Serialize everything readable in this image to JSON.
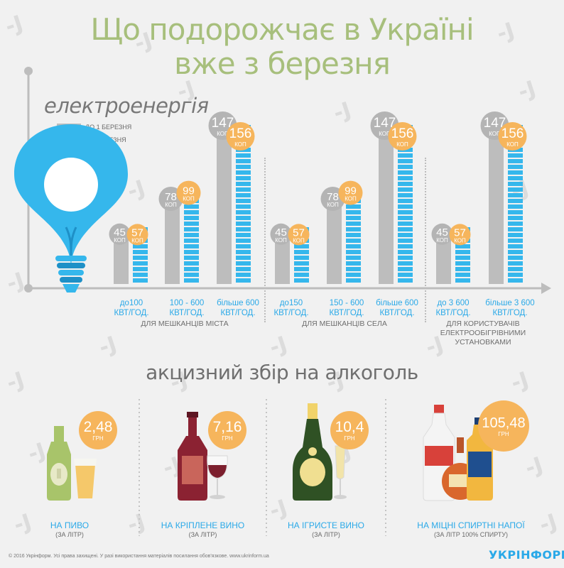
{
  "title_line1": "Що подорожчає в Україні",
  "title_line2": "вже з березня",
  "electricity": {
    "heading": "електроенергія",
    "legend": {
      "before": "ДО 1 БЕРЕЗНЯ",
      "after": "З 1 БЕРЕЗНЯ"
    },
    "unit": "КОП",
    "colors": {
      "before": "#bdbdbd",
      "after": "#35b7ec",
      "bubble_before": "#b4b4b4",
      "bubble_after": "#f6b55c"
    },
    "groups": [
      {
        "caption": "ДЛЯ МЕШКАНЦІВ МІСТА",
        "pairs": [
          {
            "label1": "до100",
            "label2": "КВТ/ГОД.",
            "before": 45,
            "after": 57
          },
          {
            "label1": "100 - 600",
            "label2": "КВТ/ГОД.",
            "before": 78,
            "after": 99
          },
          {
            "label1": "більше 600",
            "label2": "КВТ/ГОД.",
            "before": 147,
            "after": 156
          }
        ]
      },
      {
        "caption": "ДЛЯ МЕШКАНЦІВ СЕЛА",
        "pairs": [
          {
            "label1": "до150",
            "label2": "КВТ/ГОД.",
            "before": 45,
            "after": 57
          },
          {
            "label1": "150 - 600",
            "label2": "КВТ/ГОД.",
            "before": 78,
            "after": 99
          },
          {
            "label1": "більше 600",
            "label2": "КВТ/ГОД.",
            "before": 147,
            "after": 156
          }
        ]
      },
      {
        "caption1": "ДЛЯ КОРИСТУВАЧІВ",
        "caption2": "ЕЛЕКТРООБІГРІВНИМИ",
        "caption3": "УСТАНОВКАМИ",
        "pairs": [
          {
            "label1": "до 3 600",
            "label2": "КВТ/ГОД.",
            "before": 45,
            "after": 57
          },
          {
            "label1": "більше 3 600",
            "label2": "КВТ/ГОД.",
            "before": 147,
            "after": 156
          }
        ]
      }
    ]
  },
  "chart_data": {
    "type": "bar",
    "title": "електроенергія",
    "unit": "коп",
    "categories": [
      "до100 КВТ/ГОД. (місто)",
      "100 - 600 КВТ/ГОД. (місто)",
      "більше 600 КВТ/ГОД. (місто)",
      "до150 КВТ/ГОД. (село)",
      "150 - 600 КВТ/ГОД. (село)",
      "більше 600 КВТ/ГОД. (село)",
      "до 3 600 КВТ/ГОД.",
      "більше 3 600 КВТ/ГОД."
    ],
    "series": [
      {
        "name": "ДО 1 БЕРЕЗНЯ",
        "values": [
          45,
          78,
          147,
          45,
          78,
          147,
          45,
          147
        ]
      },
      {
        "name": "З 1 БЕРЕЗНЯ",
        "values": [
          57,
          99,
          156,
          57,
          99,
          156,
          57,
          156
        ]
      }
    ],
    "legend": "top-left",
    "grid": false
  },
  "alcohol": {
    "heading": "акцизний збір на алкоголь",
    "currency": "ГРН",
    "items": [
      {
        "value": "2,48",
        "label": "НА ПИВО",
        "sub": "(ЗА ЛІТР)"
      },
      {
        "value": "7,16",
        "label": "НА КРІПЛЕНЕ ВИНО",
        "sub": "(ЗА ЛІТР)"
      },
      {
        "value": "10,4",
        "label": "НА  ІГРИСТЕ ВИНО",
        "sub": "(ЗА ЛІТР)"
      },
      {
        "value": "105,48",
        "label": "НА МІЦНІ СПИРТНІ НАПОЇ",
        "sub": "(ЗА ЛІТР 100% СПИРТУ)"
      }
    ]
  },
  "footer": "© 2016 Укрінформ. Усі права захищені. У разі використання матеріалів посилання обов'язкове. www.ukrinform.ua",
  "brand": "УКРІНФОРМ",
  "watermark": "-J"
}
